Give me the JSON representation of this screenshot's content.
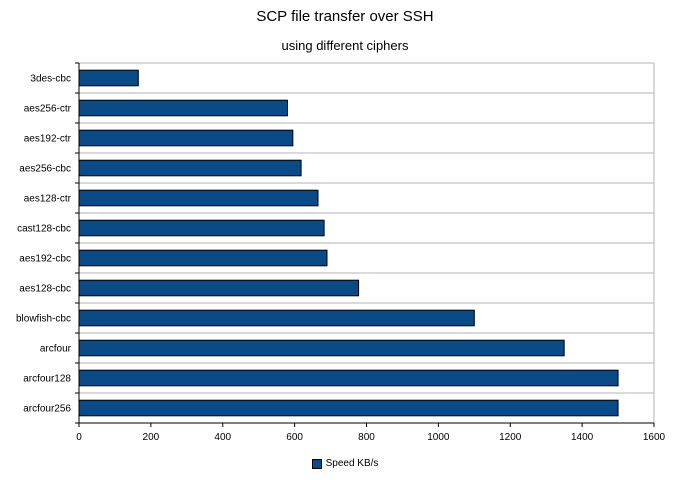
{
  "chart_data": {
    "type": "bar",
    "orientation": "horizontal",
    "title": "SCP file transfer over SSH",
    "subtitle": "using different ciphers",
    "categories": [
      "3des-cbc",
      "aes256-ctr",
      "aes192-ctr",
      "aes256-cbc",
      "aes128-ctr",
      "cast128-cbc",
      "aes192-cbc",
      "aes128-cbc",
      "blowfish-cbc",
      "arcfour",
      "arcfour128",
      "arcfour256"
    ],
    "series": [
      {
        "name": "Speed KB/s",
        "values": [
          165,
          580,
          595,
          618,
          665,
          682,
          690,
          778,
          1100,
          1350,
          1500,
          1500
        ],
        "color": "#0a4a86"
      }
    ],
    "xlim": [
      0,
      1600
    ],
    "xticks": [
      0,
      200,
      400,
      600,
      800,
      1000,
      1200,
      1400,
      1600
    ],
    "grid": true,
    "legend_position": "bottom"
  }
}
